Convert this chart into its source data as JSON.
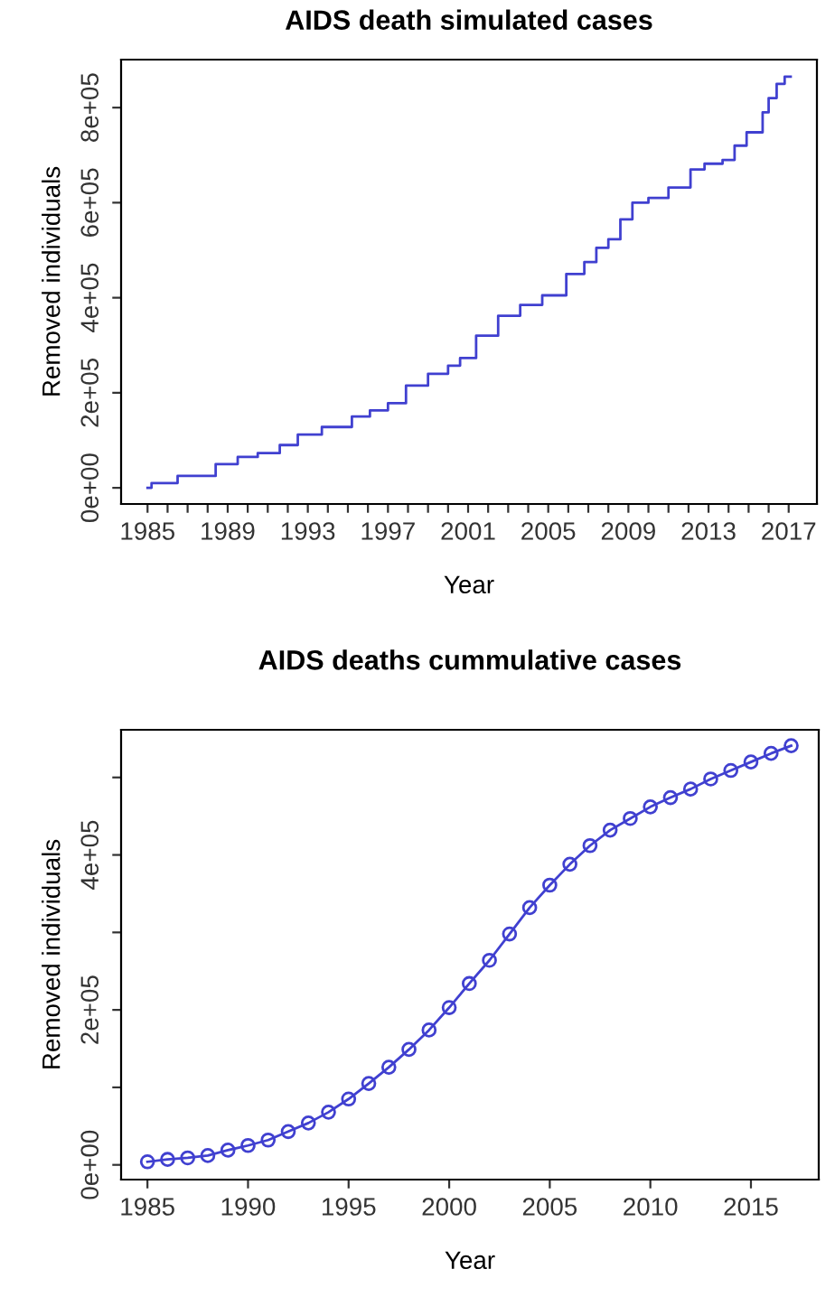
{
  "chart_data": [
    {
      "type": "step",
      "title": "AIDS death simulated cases",
      "xlabel": "Year",
      "ylabel": "Removed individuals",
      "x": [
        1985,
        1985.2,
        1986.5,
        1988.4,
        1989.5,
        1990.5,
        1991.6,
        1992.5,
        1993.7,
        1995.2,
        1996.1,
        1997,
        1997.9,
        1999,
        2000,
        2000.6,
        2001.4,
        2002.5,
        2003.6,
        2004.7,
        2005.9,
        2006.8,
        2007.4,
        2008,
        2008.6,
        2009.2,
        2010,
        2011,
        2012.1,
        2012.8,
        2013.7,
        2014.3,
        2014.9,
        2015.7,
        2016,
        2016.4,
        2016.8,
        2017.1
      ],
      "series": [
        {
          "color": "#4040d0",
          "values": [
            0,
            10000,
            25000,
            50000,
            65000,
            73000,
            90000,
            112000,
            128000,
            150000,
            163000,
            178000,
            215000,
            240000,
            257000,
            273000,
            320000,
            362000,
            385000,
            405000,
            450000,
            475000,
            505000,
            523000,
            565000,
            600000,
            610000,
            632000,
            670000,
            682000,
            690000,
            720000,
            748000,
            790000,
            820000,
            850000,
            865000,
            865000
          ]
        }
      ],
      "xlim": [
        1983.68,
        2018.41
      ],
      "xticks": [
        1985,
        {
          "value": 1986,
          "label": null
        },
        {
          "value": 1987,
          "label": null
        },
        {
          "value": 1988,
          "label": null
        },
        1989,
        {
          "value": 1990,
          "label": null
        },
        {
          "value": 1991,
          "label": null
        },
        {
          "value": 1992,
          "label": null
        },
        1993,
        {
          "value": 1994,
          "label": null
        },
        {
          "value": 1995,
          "label": null
        },
        {
          "value": 1996,
          "label": null
        },
        1997,
        {
          "value": 1998,
          "label": null
        },
        {
          "value": 1999,
          "label": null
        },
        {
          "value": 2000,
          "label": null
        },
        2001,
        {
          "value": 2002,
          "label": null
        },
        {
          "value": 2003,
          "label": null
        },
        {
          "value": 2004,
          "label": null
        },
        2005,
        {
          "value": 2006,
          "label": null
        },
        {
          "value": 2007,
          "label": null
        },
        {
          "value": 2008,
          "label": null
        },
        2009,
        {
          "value": 2010,
          "label": null
        },
        {
          "value": 2011,
          "label": null
        },
        {
          "value": 2012,
          "label": null
        },
        2013,
        {
          "value": 2014,
          "label": null
        },
        {
          "value": 2015,
          "label": null
        },
        {
          "value": 2016,
          "label": null
        },
        2017
      ],
      "ylim": [
        -34000,
        901000
      ],
      "yticks": [
        {
          "value": 0,
          "label": "0e+00"
        },
        {
          "value": 200000,
          "label": "2e+05"
        },
        {
          "value": 400000,
          "label": "4e+05"
        },
        {
          "value": 600000,
          "label": "6e+05"
        },
        {
          "value": 800000,
          "label": "8e+05"
        }
      ],
      "grid": false,
      "legend": false,
      "line_style": "solid",
      "marker": "none"
    },
    {
      "type": "line",
      "title": "AIDS deaths cummulative cases",
      "xlabel": "Year",
      "ylabel": "Removed individuals",
      "x": [
        1985,
        1986,
        1987,
        1988,
        1989,
        1990,
        1991,
        1992,
        1993,
        1994,
        1995,
        1996,
        1997,
        1998,
        1999,
        2000,
        2001,
        2002,
        2003,
        2004,
        2005,
        2006,
        2007,
        2008,
        2009,
        2010,
        2011,
        2012,
        2013,
        2014,
        2015,
        2016,
        2017
      ],
      "series": [
        {
          "color": "#4040d0",
          "values": [
            4000,
            7000,
            9000,
            12000,
            19000,
            25000,
            32000,
            43000,
            54000,
            68000,
            85000,
            105000,
            126000,
            149000,
            174000,
            203000,
            234000,
            264000,
            298000,
            332000,
            361000,
            388000,
            412000,
            432000,
            447000,
            462000,
            474000,
            485000,
            498000,
            509000,
            520000,
            531000,
            541000
          ]
        }
      ],
      "xlim": [
        1983.69,
        2018.37
      ],
      "xticks": [
        1985,
        1990,
        1995,
        2000,
        2005,
        2010,
        2015
      ],
      "ylim": [
        -19000,
        561500
      ],
      "yticks": [
        {
          "value": 0,
          "label": "0e+00"
        },
        {
          "value": 100000,
          "label": null
        },
        {
          "value": 200000,
          "label": "2e+05"
        },
        {
          "value": 300000,
          "label": null
        },
        {
          "value": 400000,
          "label": "4e+05"
        },
        {
          "value": 500000,
          "label": null
        }
      ],
      "grid": false,
      "legend": false,
      "line_style": "solid",
      "marker": "circle"
    }
  ]
}
